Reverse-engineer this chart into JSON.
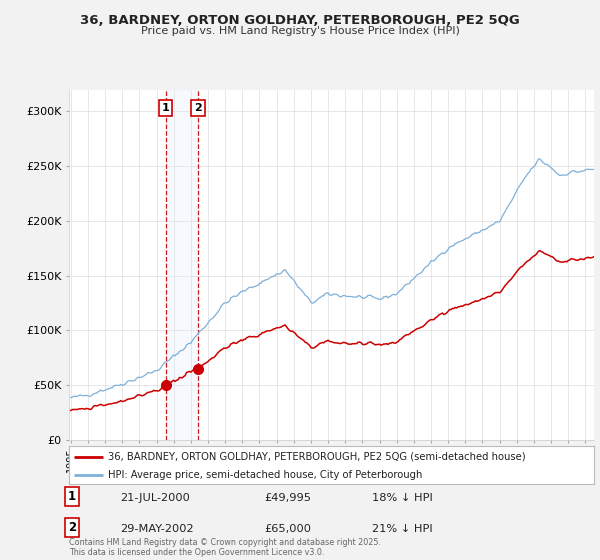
{
  "title_line1": "36, BARDNEY, ORTON GOLDHAY, PETERBOROUGH, PE2 5QG",
  "title_line2": "Price paid vs. HM Land Registry's House Price Index (HPI)",
  "background_color": "#f2f2f2",
  "plot_bg_color": "#ffffff",
  "legend_line1": "36, BARDNEY, ORTON GOLDHAY, PETERBOROUGH, PE2 5QG (semi-detached house)",
  "legend_line2": "HPI: Average price, semi-detached house, City of Peterborough",
  "transaction1_date": "21-JUL-2000",
  "transaction1_price": "£49,995",
  "transaction1_hpi": "18% ↓ HPI",
  "transaction2_date": "29-MAY-2002",
  "transaction2_price": "£65,000",
  "transaction2_hpi": "21% ↓ HPI",
  "footer": "Contains HM Land Registry data © Crown copyright and database right 2025.\nThis data is licensed under the Open Government Licence v3.0.",
  "hpi_color": "#7fb0d8",
  "price_color": "#cc0000",
  "vline_color": "#cc0000",
  "vspan_color": "#ddeeff",
  "transaction1_x": 2000.542,
  "transaction1_y": 49995,
  "transaction2_x": 2002.414,
  "transaction2_y": 65000,
  "ylim": [
    0,
    320000
  ],
  "xlim_start": 1994.9,
  "xlim_end": 2025.5,
  "ytick_labels": [
    "£0",
    "£50K",
    "£100K",
    "£150K",
    "£200K",
    "£250K",
    "£300K"
  ],
  "ytick_values": [
    0,
    50000,
    100000,
    150000,
    200000,
    250000,
    300000
  ]
}
